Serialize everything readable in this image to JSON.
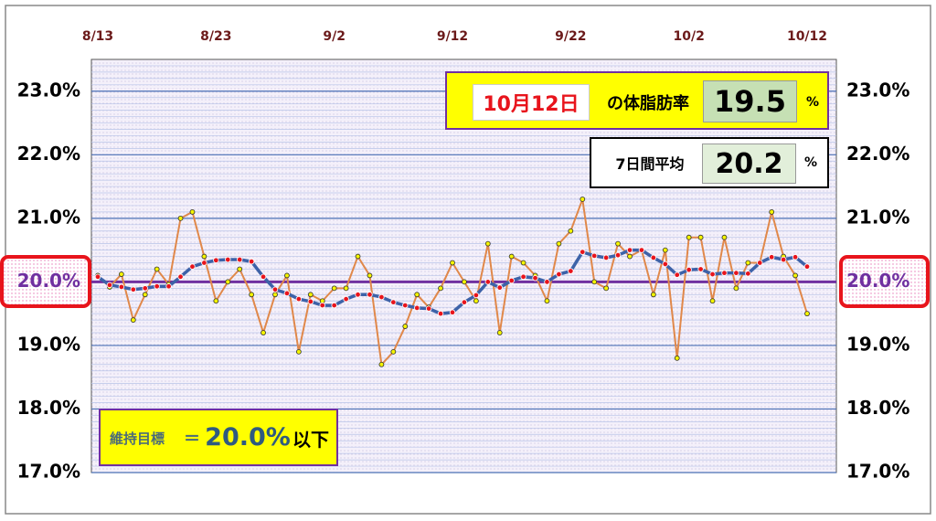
{
  "chart_data": {
    "type": "line",
    "categories": [
      "8/13",
      null,
      null,
      null,
      null,
      null,
      null,
      null,
      null,
      null,
      "8/23",
      null,
      null,
      null,
      null,
      null,
      null,
      null,
      null,
      null,
      "9/2",
      null,
      null,
      null,
      null,
      null,
      null,
      null,
      null,
      null,
      "9/12",
      null,
      null,
      null,
      null,
      null,
      null,
      null,
      null,
      null,
      "9/22",
      null,
      null,
      null,
      null,
      null,
      null,
      null,
      null,
      null,
      "10/2",
      null,
      null,
      null,
      null,
      null,
      null,
      null,
      null,
      null,
      "10/12"
    ],
    "series": [
      {
        "color": "#e0884a",
        "marker_color": "#f5f500",
        "values": [
          20.1,
          19.92,
          20.12,
          19.4,
          19.8,
          20.2,
          19.96,
          21.0,
          21.1,
          20.4,
          19.7,
          20.0,
          20.2,
          19.8,
          19.2,
          19.8,
          20.1,
          18.9,
          19.8,
          19.7,
          19.9,
          19.9,
          20.4,
          20.1,
          18.7,
          18.9,
          19.3,
          19.8,
          19.6,
          19.9,
          20.3,
          20.0,
          19.7,
          20.6,
          19.2,
          20.4,
          20.3,
          20.1,
          19.7,
          20.6,
          20.8,
          21.3,
          20.0,
          19.9,
          20.6,
          20.4,
          20.5,
          19.8,
          20.5,
          18.8,
          20.7,
          20.7,
          19.7,
          20.7,
          19.9,
          20.3,
          20.3,
          21.1,
          20.4,
          20.1,
          19.5
        ]
      },
      {
        "color": "#3d62a8",
        "marker_color": "#e8141c",
        "values": [
          20.08,
          19.95,
          19.92,
          19.88,
          19.9,
          19.93,
          19.93,
          20.08,
          20.24,
          20.3,
          20.34,
          20.35,
          20.35,
          20.32,
          20.08,
          19.88,
          19.82,
          19.73,
          19.69,
          19.63,
          19.63,
          19.73,
          19.8,
          19.8,
          19.76,
          19.68,
          19.63,
          19.59,
          19.58,
          19.5,
          19.52,
          19.68,
          19.79,
          20.0,
          19.91,
          20.02,
          20.08,
          20.06,
          20.0,
          20.12,
          20.17,
          20.47,
          20.41,
          20.38,
          20.42,
          20.5,
          20.5,
          20.38,
          20.28,
          20.11,
          20.19,
          20.2,
          20.12,
          20.14,
          20.14,
          20.13,
          20.3,
          20.39,
          20.35,
          20.39,
          20.24
        ]
      }
    ],
    "ylim": [
      17,
      23.5
    ],
    "yticks": [
      {
        "value": 17,
        "label": "17.0%"
      },
      {
        "value": 18,
        "label": "18.0%"
      },
      {
        "value": 19,
        "label": "19.0%"
      },
      {
        "value": 20,
        "label": "20.0%"
      },
      {
        "value": 21,
        "label": "21.0%"
      },
      {
        "value": 22,
        "label": "22.0%"
      },
      {
        "value": 23,
        "label": "23.0%"
      }
    ],
    "minor_grid_step": 0.1,
    "target_line": 20,
    "target_color": "#7030a0",
    "grid": true
  },
  "annotations": {
    "latest": {
      "date": "10月12日",
      "text": "の体脂肪率",
      "value": "19.5",
      "unit": "%"
    },
    "average": {
      "text": "7日間平均",
      "value": "20.2",
      "unit": "%"
    },
    "goal": {
      "label": "維持目標",
      "eq": "＝",
      "value": "20.0%",
      "suffix": "以下"
    }
  }
}
